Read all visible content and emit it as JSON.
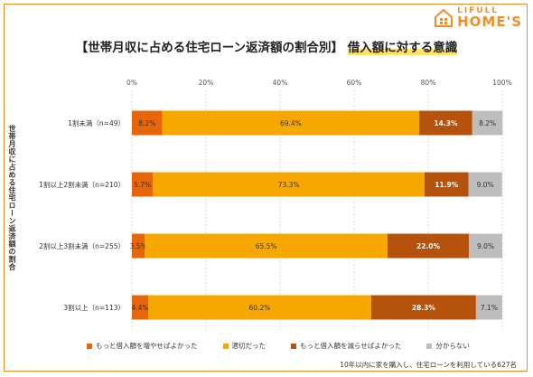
{
  "logo": {
    "top": "LIFULL",
    "main": "HOME'S"
  },
  "title": {
    "main": "【世帯月収に占める住宅ローン返済額の割合別】",
    "highlight": "借入額に対する意識"
  },
  "note": "10年以内に家を購入し、住宅ローンを利用している627名",
  "colors": {
    "more": "#e8660a",
    "ok": "#f7a800",
    "less": "#b5520c",
    "unknown": "#bdbdbd"
  },
  "chart_data": {
    "type": "bar",
    "orientation": "horizontal",
    "stacked": true,
    "ylabel": "世帯月収に占める住宅ローン返済額の割合",
    "xlim": [
      0,
      100
    ],
    "xticks": [
      "0%",
      "20%",
      "40%",
      "60%",
      "80%",
      "100%"
    ],
    "categories": [
      "1割未満（n=49）",
      "1割以上2割未満（n=210）",
      "2割以上3割未満（n=255）",
      "3割以上（n=113）"
    ],
    "series": [
      {
        "name": "もっと借入額を増やせばよかった",
        "values": [
          8.2,
          5.7,
          3.5,
          4.4
        ],
        "labels": [
          "8.2%",
          "5.7%",
          "3.5%",
          "4.4%"
        ]
      },
      {
        "name": "適切だった",
        "values": [
          69.4,
          73.3,
          65.5,
          60.2
        ],
        "labels": [
          "69.4%",
          "73.3%",
          "65.5%",
          "60.2%"
        ]
      },
      {
        "name": "もっと借入額を減らせばよかった",
        "values": [
          14.3,
          11.9,
          22.0,
          28.3
        ],
        "labels": [
          "14.3%",
          "11.9%",
          "22.0%",
          "28.3%"
        ]
      },
      {
        "name": "分からない",
        "values": [
          8.2,
          9.0,
          9.0,
          7.1
        ],
        "labels": [
          "8.2%",
          "9.0%",
          "9.0%",
          "7.1%"
        ]
      }
    ],
    "legend_position": "bottom",
    "grid": true
  }
}
